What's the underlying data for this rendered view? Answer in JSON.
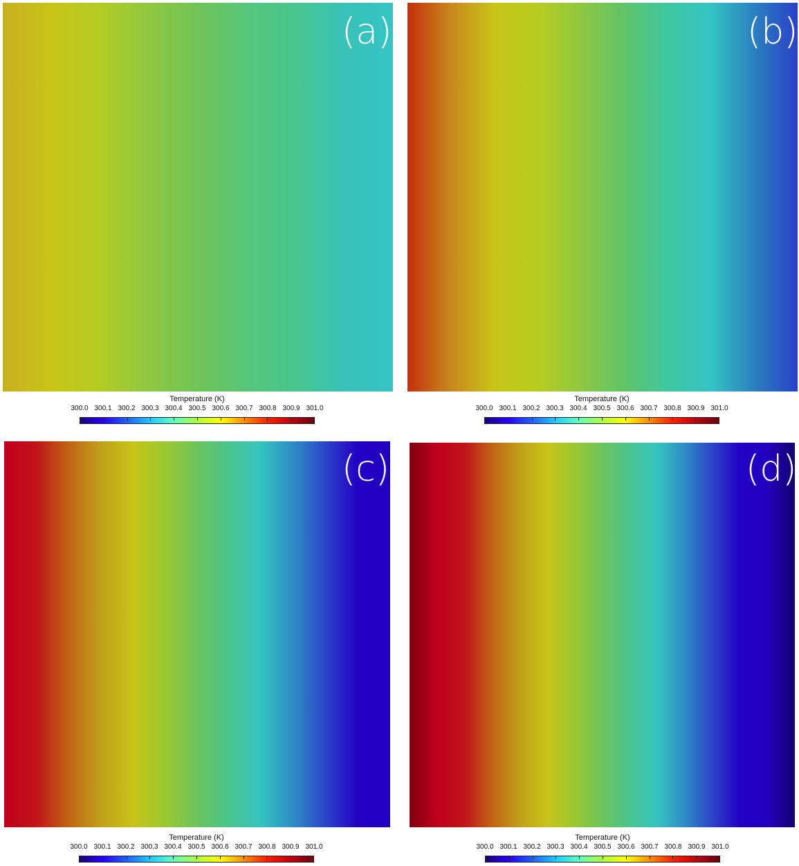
{
  "panels": [
    {
      "label": "(a)",
      "colors": [
        "#c8b020",
        "#c8c418",
        "#b2cc24",
        "#8ec840",
        "#70c458",
        "#56c67a",
        "#48c68e",
        "#38c2b8",
        "#34c4c4"
      ]
    },
    {
      "label": "(b)",
      "colors": [
        "#c4300c",
        "#c8881c",
        "#c8c418",
        "#b8cc20",
        "#8ec840",
        "#60c468",
        "#3ec8a0",
        "#34c4c4",
        "#2a80c0",
        "#2a40c8"
      ]
    },
    {
      "label": "(c)",
      "colors": [
        "#c0001c",
        "#c01418",
        "#c06414",
        "#c0a018",
        "#c8c418",
        "#9ac830",
        "#6cc45c",
        "#48c48e",
        "#34c4c0",
        "#2e8cc4",
        "#2c44c8",
        "#2200c4",
        "#2200c0"
      ]
    },
    {
      "label": "(d)",
      "colors": [
        "#800010",
        "#c0001c",
        "#c01418",
        "#c06414",
        "#c0a018",
        "#c8c418",
        "#9ac830",
        "#6cc45c",
        "#48c48e",
        "#34c4c0",
        "#2e8cc4",
        "#2c44c8",
        "#2200c4",
        "#2200c0",
        "#14006e"
      ]
    }
  ],
  "colorbar": {
    "title": "Temperature (K)",
    "ticks": [
      "300.0",
      "300.1",
      "300.2",
      "300.3",
      "300.4",
      "300.5",
      "300.6",
      "300.7",
      "300.8",
      "300.9",
      "301.0"
    ],
    "colors": [
      "#1a007a",
      "#2800ff",
      "#2060ff",
      "#20c8ff",
      "#60ffc0",
      "#b0ff40",
      "#ffff00",
      "#ff9000",
      "#ff2000",
      "#c00010",
      "#6a0010"
    ]
  }
}
